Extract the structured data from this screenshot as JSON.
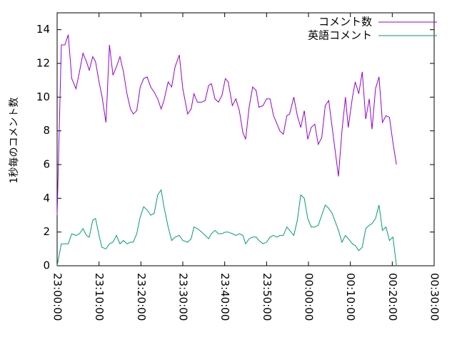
{
  "chart_data": {
    "type": "line",
    "ylabel": "1秒毎のコメント数",
    "xlim": [
      0,
      5400
    ],
    "ylim": [
      0,
      15
    ],
    "yticks": [
      0,
      2,
      4,
      6,
      8,
      10,
      12,
      14
    ],
    "xticks": [
      {
        "value": 0,
        "label": "23:00:00"
      },
      {
        "value": 600,
        "label": "23:10:00"
      },
      {
        "value": 1200,
        "label": "23:20:00"
      },
      {
        "value": 1800,
        "label": "23:30:00"
      },
      {
        "value": 2400,
        "label": "23:40:00"
      },
      {
        "value": 3000,
        "label": "23:50:00"
      },
      {
        "value": 3600,
        "label": "00:00:00"
      },
      {
        "value": 4200,
        "label": "00:10:00"
      },
      {
        "value": 4800,
        "label": "00:20:00"
      },
      {
        "value": 5400,
        "label": "00:30:00"
      }
    ],
    "legend": "top-right",
    "x": [
      0,
      60,
      110,
      160,
      210,
      270,
      320,
      370,
      420,
      460,
      510,
      550,
      600,
      640,
      700,
      750,
      800,
      850,
      900,
      950,
      1000,
      1050,
      1090,
      1140,
      1190,
      1240,
      1290,
      1340,
      1390,
      1440,
      1490,
      1530,
      1590,
      1640,
      1690,
      1750,
      1800,
      1870,
      1920,
      1960,
      2010,
      2070,
      2120,
      2170,
      2210,
      2260,
      2310,
      2360,
      2410,
      2450,
      2510,
      2560,
      2610,
      2660,
      2700,
      2750,
      2800,
      2850,
      2890,
      2950,
      3000,
      3050,
      3100,
      3150,
      3190,
      3240,
      3290,
      3330,
      3390,
      3440,
      3490,
      3540,
      3590,
      3640,
      3690,
      3740,
      3790,
      3840,
      3890,
      3940,
      4030,
      4080,
      4130,
      4170,
      4230,
      4270,
      4320,
      4370,
      4420,
      4470,
      4510,
      4560,
      4610,
      4660,
      4710,
      4760,
      4810,
      4860
    ],
    "series": [
      {
        "name": "コメント数",
        "color": "#9400d3",
        "values": [
          3,
          13.1,
          13.1,
          13.7,
          11.1,
          10.5,
          11.5,
          12.6,
          12.1,
          11.6,
          12.4,
          12.1,
          10.9,
          10.1,
          8.5,
          13.1,
          11.3,
          11.8,
          12.4,
          11.5,
          10.2,
          9.3,
          9.0,
          9.2,
          10.6,
          11.1,
          11.2,
          10.6,
          10.3,
          9.9,
          9.3,
          9.8,
          10.9,
          10.6,
          11.8,
          12.5,
          10.5,
          9.0,
          9.3,
          10.2,
          9.7,
          9.7,
          9.8,
          10.7,
          10.8,
          9.9,
          9.7,
          10.1,
          11.1,
          10.9,
          9.5,
          9.9,
          9.2,
          7.9,
          7.5,
          9.4,
          10.6,
          10.4,
          9.4,
          9.5,
          9.9,
          9.9,
          8.9,
          8.4,
          8.0,
          7.8,
          8.9,
          9.0,
          10.0,
          8.9,
          8.2,
          9.2,
          7.5,
          8.2,
          8.4,
          7.2,
          7.6,
          9.5,
          9.8,
          8.2,
          5.3,
          8.0,
          10.0,
          8.2,
          10.0,
          10.9,
          10.2,
          11.5,
          8.7,
          9.9,
          8.1,
          10.5,
          11.2,
          8.5,
          8.9,
          8.8,
          7.3,
          6.0
        ]
      },
      {
        "name": "英語コメント",
        "color": "#009e73",
        "values": [
          0,
          1.3,
          1.3,
          1.3,
          1.9,
          1.8,
          1.9,
          2.2,
          1.8,
          1.7,
          2.7,
          2.8,
          1.8,
          1.1,
          1.0,
          1.3,
          1.4,
          1.8,
          1.3,
          1.5,
          1.3,
          1.4,
          1.4,
          1.9,
          2.9,
          3.5,
          3.3,
          3.0,
          3.1,
          4.2,
          4.5,
          3.5,
          2.3,
          1.5,
          1.7,
          1.8,
          1.5,
          1.4,
          1.6,
          2.3,
          2.2,
          2.0,
          1.8,
          1.6,
          1.9,
          2.1,
          1.9,
          1.9,
          2.0,
          2.0,
          1.9,
          1.8,
          1.9,
          1.8,
          1.3,
          1.6,
          1.7,
          1.7,
          1.5,
          1.3,
          1.4,
          1.7,
          1.8,
          1.7,
          1.8,
          1.8,
          2.3,
          2.1,
          1.8,
          2.7,
          4.2,
          4.0,
          2.8,
          2.3,
          2.3,
          2.4,
          3.0,
          3.6,
          3.4,
          3.1,
          2.1,
          1.4,
          1.8,
          1.6,
          1.3,
          1.2,
          0.9,
          1.1,
          2.2,
          2.4,
          2.5,
          2.8,
          3.6,
          2.1,
          2.3,
          1.5,
          1.7,
          0
        ]
      }
    ]
  }
}
